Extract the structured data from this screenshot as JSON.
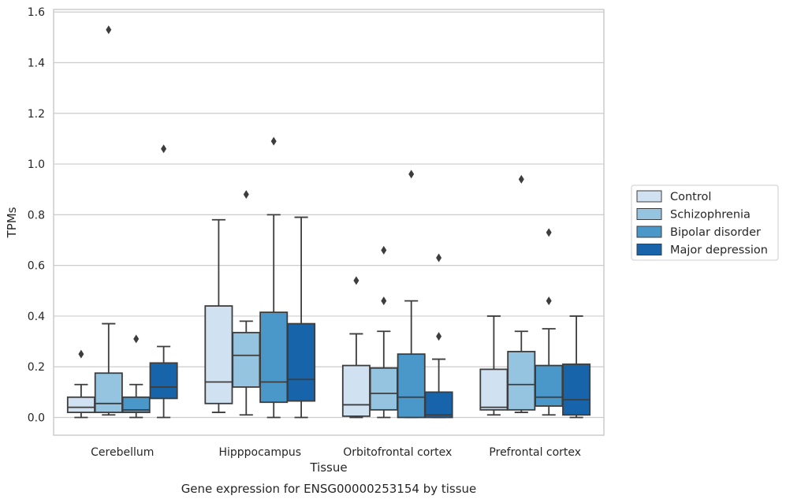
{
  "chart_data": {
    "type": "boxplot",
    "xlabel": "Tissue",
    "ylabel": "TPMs",
    "caption": "Gene expression for ENSG00000253154 by tissue",
    "ylim": [
      -0.07,
      1.61
    ],
    "yticks": [
      "0.0",
      "0.2",
      "0.4",
      "0.6",
      "0.8",
      "1.0",
      "1.2",
      "1.4",
      "1.6"
    ],
    "grid": "horizontal",
    "legend_position": "right-outside",
    "categories": [
      "Cerebellum",
      "Hipppocampus",
      "Orbitofrontal cortex",
      "Prefrontal cortex"
    ],
    "series": [
      {
        "name": "Control",
        "color": "#d0e1f2",
        "boxes": [
          {
            "whislo": 0.0,
            "q1": 0.02,
            "med": 0.04,
            "q3": 0.08,
            "whishi": 0.13,
            "fliers": [
              0.25
            ]
          },
          {
            "whislo": 0.02,
            "q1": 0.055,
            "med": 0.14,
            "q3": 0.44,
            "whishi": 0.78,
            "fliers": []
          },
          {
            "whislo": 0.0,
            "q1": 0.005,
            "med": 0.05,
            "q3": 0.205,
            "whishi": 0.33,
            "fliers": [
              0.54
            ]
          },
          {
            "whislo": 0.01,
            "q1": 0.03,
            "med": 0.04,
            "q3": 0.19,
            "whishi": 0.4,
            "fliers": []
          }
        ]
      },
      {
        "name": "Schizophrenia",
        "color": "#94c4df",
        "boxes": [
          {
            "whislo": 0.01,
            "q1": 0.02,
            "med": 0.055,
            "q3": 0.175,
            "whishi": 0.37,
            "fliers": [
              1.53
            ]
          },
          {
            "whislo": 0.01,
            "q1": 0.12,
            "med": 0.245,
            "q3": 0.335,
            "whishi": 0.38,
            "fliers": [
              0.88
            ]
          },
          {
            "whislo": 0.0,
            "q1": 0.03,
            "med": 0.095,
            "q3": 0.195,
            "whishi": 0.34,
            "fliers": [
              0.66,
              0.46
            ]
          },
          {
            "whislo": 0.02,
            "q1": 0.03,
            "med": 0.13,
            "q3": 0.26,
            "whishi": 0.34,
            "fliers": [
              0.94
            ]
          }
        ]
      },
      {
        "name": "Bipolar disorder",
        "color": "#4a98c9",
        "boxes": [
          {
            "whislo": 0.0,
            "q1": 0.02,
            "med": 0.03,
            "q3": 0.08,
            "whishi": 0.13,
            "fliers": [
              0.31
            ]
          },
          {
            "whislo": 0.0,
            "q1": 0.06,
            "med": 0.14,
            "q3": 0.415,
            "whishi": 0.8,
            "fliers": [
              1.09
            ]
          },
          {
            "whislo": 0.0,
            "q1": 0.0,
            "med": 0.08,
            "q3": 0.25,
            "whishi": 0.46,
            "fliers": [
              0.96
            ]
          },
          {
            "whislo": 0.01,
            "q1": 0.045,
            "med": 0.08,
            "q3": 0.205,
            "whishi": 0.35,
            "fliers": [
              0.73,
              0.46
            ]
          }
        ]
      },
      {
        "name": "Major depression",
        "color": "#1764ab",
        "boxes": [
          {
            "whislo": 0.0,
            "q1": 0.075,
            "med": 0.12,
            "q3": 0.215,
            "whishi": 0.28,
            "fliers": [
              1.06
            ]
          },
          {
            "whislo": 0.0,
            "q1": 0.065,
            "med": 0.15,
            "q3": 0.37,
            "whishi": 0.79,
            "fliers": []
          },
          {
            "whislo": 0.0,
            "q1": 0.0,
            "med": 0.01,
            "q3": 0.1,
            "whishi": 0.23,
            "fliers": [
              0.63,
              0.32
            ]
          },
          {
            "whislo": 0.0,
            "q1": 0.01,
            "med": 0.07,
            "q3": 0.21,
            "whishi": 0.4,
            "fliers": []
          }
        ]
      }
    ]
  }
}
